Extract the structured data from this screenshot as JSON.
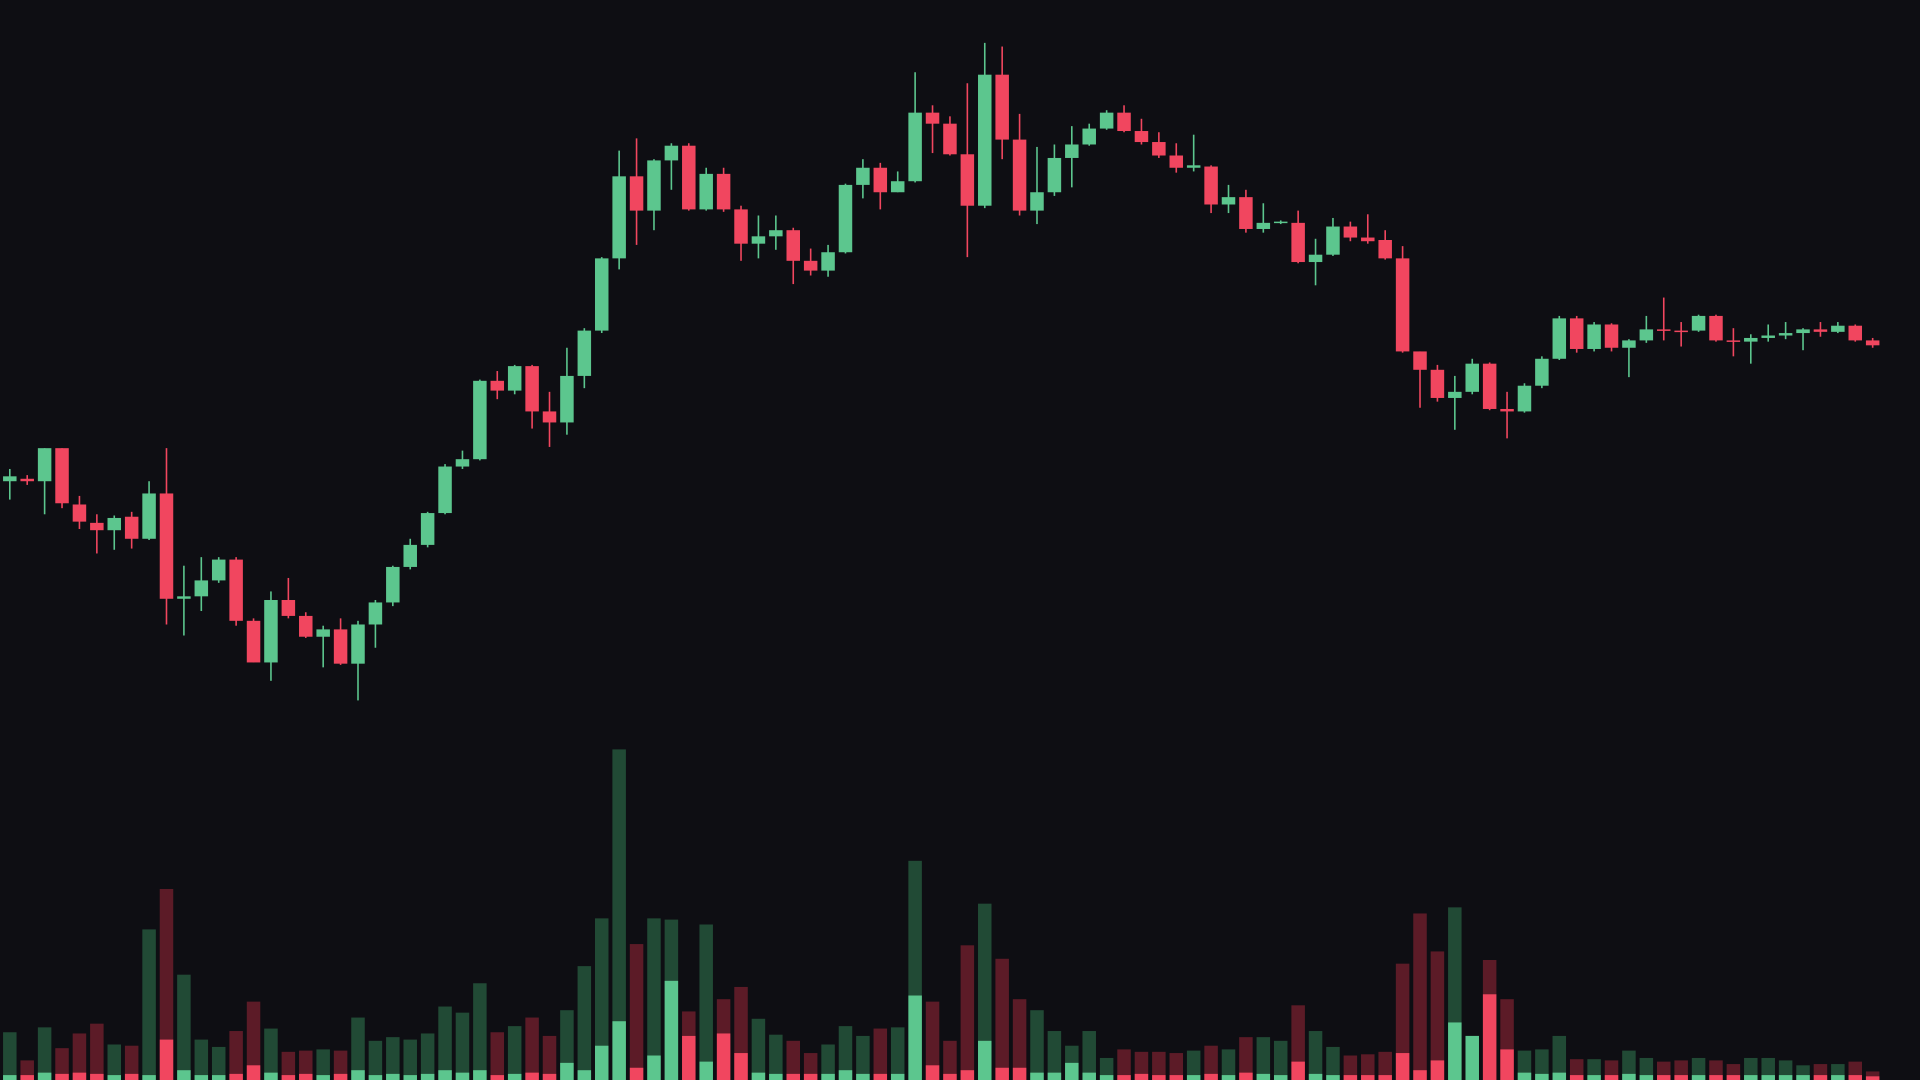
{
  "chart_data": {
    "type": "candlestick",
    "up_color": "#5cc68e",
    "down_color": "#f1465f",
    "up_volume_color": "#214a35",
    "down_volume_color": "#5c1b27",
    "background": "#0e0e13",
    "ylim": [
      0,
      882
    ],
    "y2lim": [
      0,
      882
    ],
    "open": [
      489,
      491,
      489,
      516,
      470,
      455,
      449,
      460,
      442,
      479,
      393,
      395,
      408,
      425,
      375,
      341,
      392,
      379,
      362,
      368,
      340,
      372,
      390,
      419,
      437,
      463,
      501,
      507,
      571,
      563,
      583,
      546,
      537,
      575,
      612,
      671,
      738,
      710,
      751,
      763,
      711,
      740,
      711,
      683,
      689,
      694,
      669,
      661,
      676,
      731,
      745,
      725,
      734,
      790,
      781,
      756,
      714,
      821,
      768,
      710,
      725,
      753,
      764,
      777,
      790,
      775,
      766,
      755,
      745,
      746,
      715,
      721,
      695,
      700,
      700,
      668,
      674,
      697,
      688,
      686,
      671,
      595,
      580,
      557,
      562,
      585,
      548,
      546,
      567,
      589,
      622,
      597,
      617,
      598,
      604,
      613,
      612,
      612,
      624,
      604,
      603,
      606,
      608,
      610,
      613,
      611,
      616,
      604
    ],
    "high": [
      499,
      494,
      516,
      516,
      477,
      462,
      461,
      464,
      489,
      516,
      420,
      427,
      427,
      427,
      377,
      399,
      410,
      382,
      371,
      377,
      375,
      392,
      420,
      442,
      464,
      503,
      514,
      572,
      579,
      584,
      584,
      562,
      598,
      614,
      672,
      759,
      769,
      752,
      765,
      765,
      745,
      745,
      714,
      706,
      706,
      696,
      679,
      682,
      732,
      752,
      749,
      742,
      823,
      796,
      787,
      814,
      847,
      844,
      789,
      762,
      764,
      779,
      781,
      792,
      796,
      785,
      774,
      765,
      772,
      747,
      731,
      727,
      716,
      702,
      710,
      687,
      704,
      701,
      707,
      694,
      681,
      595,
      584,
      575,
      589,
      586,
      562,
      569,
      591,
      624,
      624,
      619,
      618,
      605,
      624,
      639,
      619,
      625,
      625,
      614,
      609,
      617,
      619,
      614,
      619,
      619,
      617,
      606
    ],
    "low": [
      474,
      486,
      462,
      467,
      450,
      430,
      433,
      434,
      441,
      372,
      363,
      383,
      406,
      371,
      341,
      326,
      377,
      361,
      337,
      339,
      310,
      353,
      387,
      417,
      435,
      462,
      499,
      506,
      556,
      560,
      532,
      517,
      527,
      565,
      610,
      662,
      682,
      694,
      727,
      710,
      710,
      709,
      669,
      671,
      678,
      650,
      657,
      656,
      675,
      720,
      711,
      725,
      733,
      757,
      755,
      672,
      712,
      752,
      706,
      699,
      722,
      729,
      763,
      776,
      774,
      764,
      753,
      741,
      742,
      708,
      708,
      692,
      692,
      699,
      667,
      649,
      673,
      685,
      683,
      670,
      594,
      549,
      554,
      531,
      560,
      547,
      524,
      545,
      565,
      588,
      594,
      595,
      595,
      574,
      602,
      604,
      599,
      611,
      603,
      591,
      585,
      603,
      605,
      596,
      607,
      610,
      603,
      598
    ],
    "close": [
      493,
      489,
      516,
      471,
      456,
      449,
      459,
      442,
      479,
      393,
      395,
      408,
      425,
      375,
      341,
      392,
      379,
      362,
      368,
      340,
      372,
      390,
      419,
      437,
      463,
      501,
      507,
      571,
      563,
      583,
      546,
      537,
      575,
      612,
      671,
      738,
      710,
      751,
      763,
      711,
      740,
      711,
      683,
      689,
      694,
      669,
      661,
      676,
      731,
      745,
      725,
      734,
      790,
      781,
      756,
      714,
      821,
      768,
      710,
      725,
      753,
      764,
      777,
      790,
      775,
      766,
      755,
      745,
      747,
      715,
      721,
      695,
      700,
      701,
      668,
      674,
      697,
      688,
      685,
      671,
      595,
      580,
      557,
      562,
      585,
      548,
      546,
      567,
      589,
      622,
      597,
      617,
      598,
      604,
      613,
      612,
      611,
      624,
      604,
      603,
      606,
      608,
      610,
      613,
      611,
      616,
      604,
      600
    ],
    "volume": [
      39,
      16,
      43,
      26,
      38,
      46,
      29,
      28,
      123,
      156,
      86,
      33,
      27,
      40,
      64,
      42,
      23,
      24,
      25,
      24,
      51,
      32,
      35,
      33,
      38,
      60,
      55,
      79,
      39,
      44,
      51,
      36,
      57,
      93,
      132,
      270,
      111,
      132,
      131,
      56,
      127,
      66,
      76,
      50,
      37,
      32,
      22,
      29,
      44,
      36,
      42,
      43,
      179,
      64,
      32,
      110,
      144,
      99,
      66,
      57,
      40,
      28,
      40,
      18,
      25,
      23,
      23,
      22,
      24,
      28,
      25,
      35,
      35,
      32,
      61,
      40,
      27,
      20,
      21,
      23,
      95,
      136,
      105,
      141,
      36,
      98,
      66,
      24,
      25,
      36,
      17,
      17,
      16,
      24,
      18,
      15,
      16,
      18,
      16,
      13,
      18,
      18,
      16,
      12,
      13,
      13,
      15,
      7
    ],
    "volume_detail": [
      4,
      4,
      6,
      5,
      6,
      5,
      4,
      5,
      4,
      33,
      8,
      4,
      4,
      5,
      12,
      6,
      4,
      5,
      4,
      5,
      8,
      4,
      5,
      4,
      5,
      8,
      6,
      8,
      4,
      5,
      6,
      5,
      14,
      8,
      28,
      48,
      10,
      20,
      81,
      36,
      15,
      38,
      22,
      6,
      5,
      5,
      5,
      5,
      8,
      5,
      5,
      5,
      69,
      12,
      5,
      8,
      32,
      10,
      10,
      6,
      6,
      14,
      6,
      4,
      4,
      5,
      4,
      4,
      4,
      5,
      4,
      6,
      5,
      4,
      15,
      5,
      4,
      4,
      4,
      4,
      22,
      8,
      16,
      47,
      36,
      70,
      25,
      6,
      5,
      6,
      4,
      4,
      4,
      5,
      4,
      4,
      4,
      4,
      4,
      4,
      4,
      4,
      4,
      4,
      4,
      4,
      4,
      3
    ]
  }
}
